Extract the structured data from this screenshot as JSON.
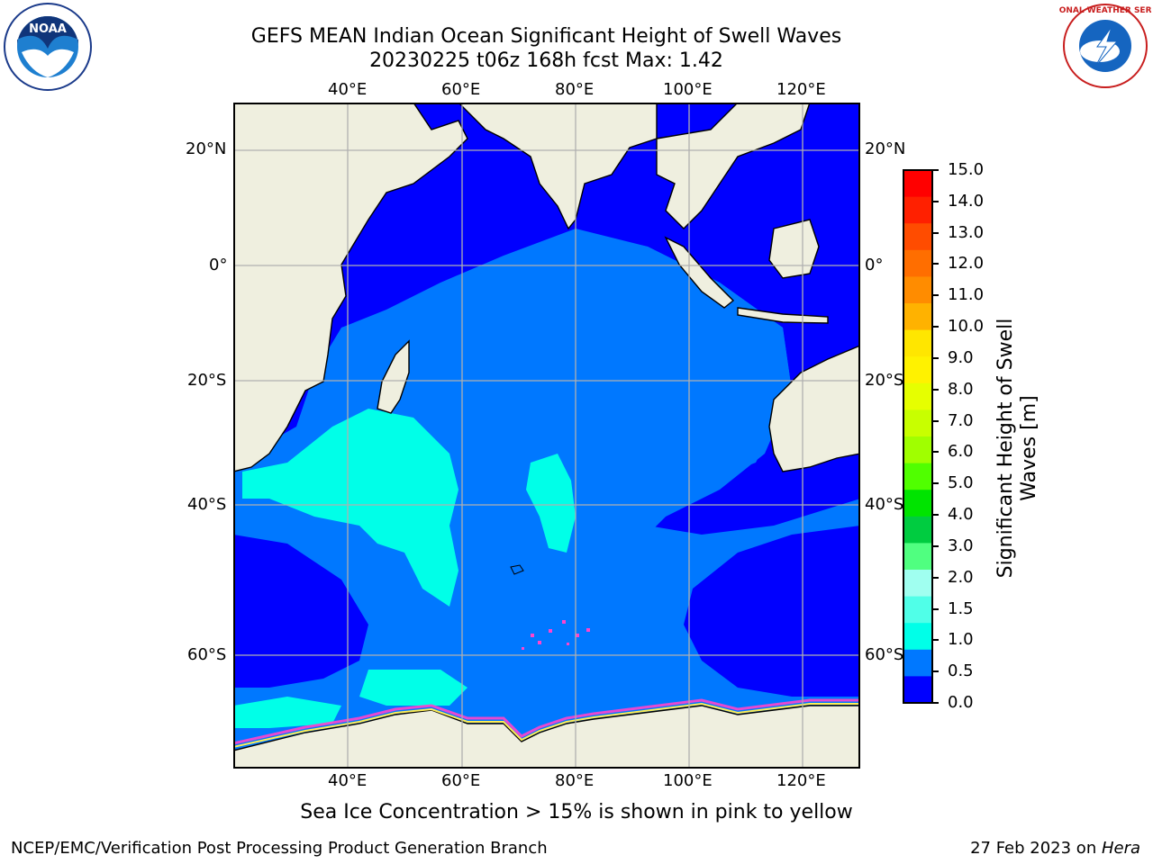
{
  "title": {
    "line1": "GEFS MEAN Indian Ocean Significant Height of Swell Waves",
    "line2": "20230225 t06z 168h fcst   Max: 1.42"
  },
  "map": {
    "lon_ticks": [
      "40°E",
      "60°E",
      "80°E",
      "100°E",
      "120°E"
    ],
    "lat_ticks": [
      "20°N",
      "0°",
      "20°S",
      "40°S",
      "60°S"
    ],
    "grid": true
  },
  "colorbar": {
    "label_line1": "Significant Height of Swell",
    "label_line2": "Waves [m]",
    "ticks": [
      "15.0",
      "14.0",
      "13.0",
      "12.0",
      "11.0",
      "10.0",
      "9.0",
      "8.0",
      "7.0",
      "6.0",
      "5.0",
      "4.0",
      "3.0",
      "2.0",
      "1.5",
      "1.0",
      "0.5",
      "0.0"
    ],
    "colors_top_to_bottom": [
      "#ff0000",
      "#ff2000",
      "#ff4c00",
      "#ff6e00",
      "#ff8c00",
      "#ffb200",
      "#ffe600",
      "#fff200",
      "#e6ff00",
      "#c8ff00",
      "#a0ff00",
      "#50ff00",
      "#00e400",
      "#00cc40",
      "#50ff80",
      "#a0fff0",
      "#50ffe8",
      "#00ffe8",
      "#0078ff",
      "#0000ff"
    ]
  },
  "colors": {
    "land": "#efefdf",
    "ocean_low": "#0000ff",
    "ocean_mid": "#0078ff",
    "ocean_high": "#00ffe8",
    "sea_ice": "#ff44cc",
    "grid": "#b0b0b0"
  },
  "caption": "Sea Ice Concentration > 15% is shown in pink to yellow",
  "footer": {
    "left": "NCEP/EMC/Verification Post Processing Product Generation Branch",
    "right_prefix": "27 Feb 2023 on ",
    "right_host": "Hera"
  },
  "logos": {
    "noaa": "NOAA",
    "nws": "NATIONAL WEATHER SERVICE"
  }
}
